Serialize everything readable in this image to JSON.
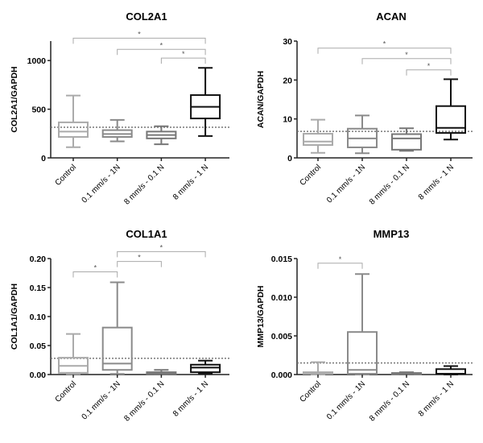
{
  "chart_data": [
    {
      "type": "box",
      "title": "COL2A1",
      "ylabel": "COL2A1/GAPDH",
      "categories": [
        "Control",
        "0.1 mm/s - 1N",
        "8 mm/s - 0.1 N",
        "8 mm/s - 1 N"
      ],
      "colors": [
        "#aaaaaa",
        "#8a8a8a",
        "#777777",
        "#111111"
      ],
      "ylim": [
        0,
        1200
      ],
      "yticks": [
        0,
        500,
        1000
      ],
      "tick_labels": [
        "0",
        "500",
        "1000"
      ],
      "reference_line": 315,
      "series": [
        {
          "min": 110,
          "q1": 215,
          "median": 270,
          "q3": 365,
          "max": 640
        },
        {
          "min": 170,
          "q1": 215,
          "median": 245,
          "q3": 285,
          "max": 390
        },
        {
          "min": 140,
          "q1": 200,
          "median": 235,
          "q3": 270,
          "max": 325
        },
        {
          "min": 225,
          "q1": 405,
          "median": 525,
          "q3": 645,
          "max": 925
        }
      ],
      "significance": [
        {
          "from": 0,
          "to": 3,
          "level": 1230,
          "label": "*"
        },
        {
          "from": 1,
          "to": 3,
          "level": 1115,
          "label": "*"
        },
        {
          "from": 2,
          "to": 3,
          "level": 1025,
          "label": "*"
        }
      ]
    },
    {
      "type": "box",
      "title": "ACAN",
      "ylabel": "ACAN/GAPDH",
      "categories": [
        "Control",
        "0.1 mm/s - 1N",
        "8 mm/s - 0.1 N",
        "8 mm/s - 1 N"
      ],
      "colors": [
        "#aaaaaa",
        "#8a8a8a",
        "#777777",
        "#111111"
      ],
      "ylim": [
        0,
        30
      ],
      "yticks": [
        0,
        10,
        20,
        30
      ],
      "tick_labels": [
        "0",
        "10",
        "20",
        "30"
      ],
      "reference_line": 6.8,
      "series": [
        {
          "min": 1.3,
          "q1": 3.3,
          "median": 4.2,
          "q3": 6.2,
          "max": 9.8
        },
        {
          "min": 1.2,
          "q1": 2.7,
          "median": 5.0,
          "q3": 7.5,
          "max": 10.9
        },
        {
          "min": 1.8,
          "q1": 2.1,
          "median": 5.0,
          "q3": 6.1,
          "max": 7.6
        },
        {
          "min": 4.7,
          "q1": 6.4,
          "median": 7.7,
          "q3": 13.3,
          "max": 20.2
        }
      ],
      "significance": [
        {
          "from": 0,
          "to": 3,
          "level": 28.2,
          "label": "*"
        },
        {
          "from": 1,
          "to": 3,
          "level": 25.5,
          "label": "*"
        },
        {
          "from": 2,
          "to": 3,
          "level": 22.6,
          "label": "*"
        }
      ]
    },
    {
      "type": "box",
      "title": "COL1A1",
      "ylabel": "COL1A1/GAPDH",
      "categories": [
        "Control",
        "0.1 mm/s - 1N",
        "8 mm/s - 0.1 N",
        "8 mm/s - 1 N"
      ],
      "colors": [
        "#aaaaaa",
        "#8a8a8a",
        "#777777",
        "#111111"
      ],
      "ylim": [
        0,
        0.2
      ],
      "yticks": [
        0,
        0.05,
        0.1,
        0.15,
        0.2
      ],
      "tick_labels": [
        "0.00",
        "0.05",
        "0.10",
        "0.15",
        "0.20"
      ],
      "reference_line": 0.028,
      "series": [
        {
          "min": 0.001,
          "q1": 0.003,
          "median": 0.015,
          "q3": 0.029,
          "max": 0.07
        },
        {
          "min": 0.001,
          "q1": 0.008,
          "median": 0.019,
          "q3": 0.081,
          "max": 0.159
        },
        {
          "min": 0.0,
          "q1": 0.001,
          "median": 0.003,
          "q3": 0.004,
          "max": 0.008
        },
        {
          "min": 0.002,
          "q1": 0.004,
          "median": 0.012,
          "q3": 0.017,
          "max": 0.024
        }
      ],
      "significance": [
        {
          "from": 0,
          "to": 1,
          "level": 0.177,
          "label": "*"
        },
        {
          "from": 1,
          "to": 2,
          "level": 0.195,
          "label": "*"
        },
        {
          "from": 1,
          "to": 3,
          "level": 0.212,
          "label": "*"
        }
      ]
    },
    {
      "type": "box",
      "title": "MMP13",
      "ylabel": "MMP13/GAPDH",
      "categories": [
        "Control",
        "0.1 mm/s - 1N",
        "8 mm/s - 0.1 N",
        "8 mm/s - 1 N"
      ],
      "colors": [
        "#aaaaaa",
        "#8a8a8a",
        "#777777",
        "#111111"
      ],
      "ylim": [
        0,
        0.015
      ],
      "yticks": [
        0,
        0.005,
        0.01,
        0.015
      ],
      "tick_labels": [
        "0.000",
        "0.005",
        "0.010",
        "0.015"
      ],
      "reference_line": 0.0015,
      "series": [
        {
          "min": 0.0,
          "q1": 0.0001,
          "median": 0.0002,
          "q3": 0.0003,
          "max": 0.0016
        },
        {
          "min": 0.0,
          "q1": 0.0001,
          "median": 0.0006,
          "q3": 0.0055,
          "max": 0.013
        },
        {
          "min": 0.0,
          "q1": 5e-05,
          "median": 0.0001,
          "q3": 0.0002,
          "max": 0.0003
        },
        {
          "min": 0.0,
          "q1": 0.0001,
          "median": 0.0001,
          "q3": 0.0007,
          "max": 0.0011
        }
      ],
      "significance": [
        {
          "from": 0,
          "to": 1,
          "level": 0.0144,
          "label": "*"
        }
      ]
    }
  ]
}
